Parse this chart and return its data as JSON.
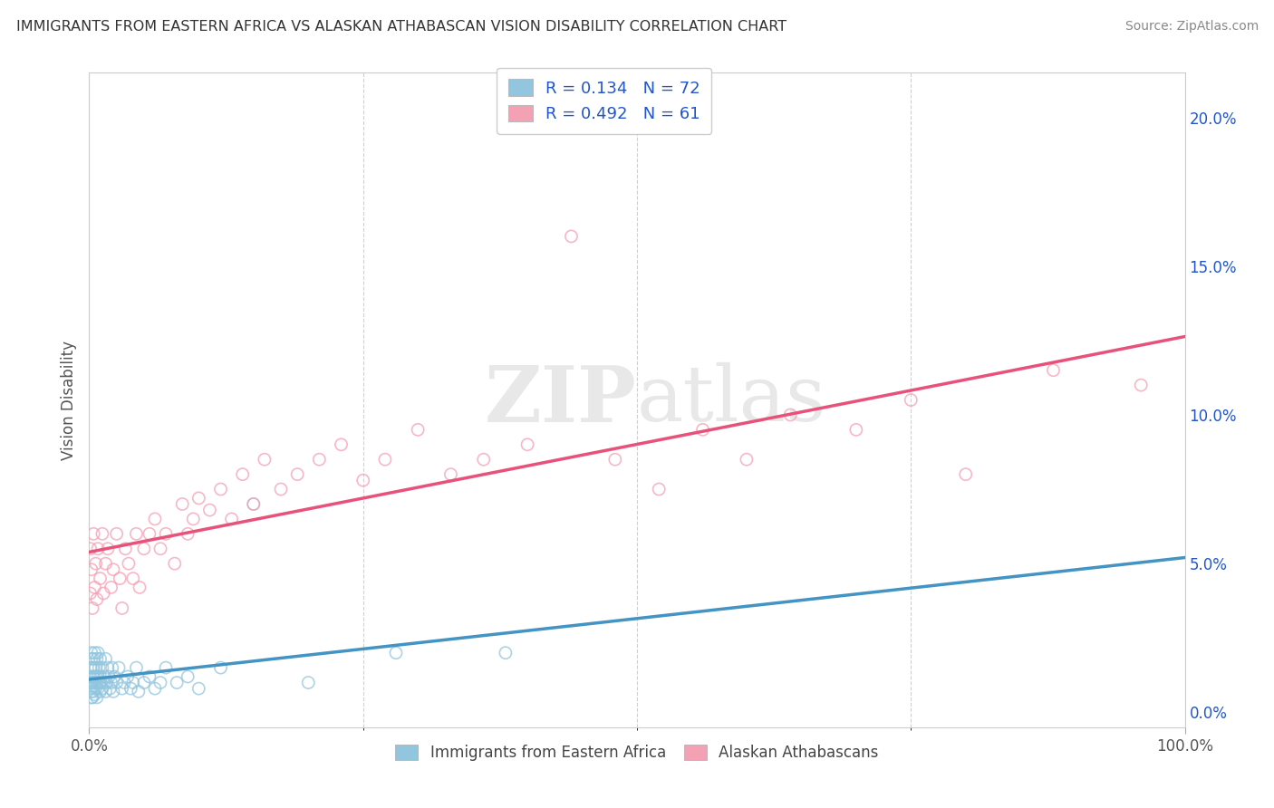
{
  "title": "IMMIGRANTS FROM EASTERN AFRICA VS ALASKAN ATHABASCAN VISION DISABILITY CORRELATION CHART",
  "source": "Source: ZipAtlas.com",
  "ylabel": "Vision Disability",
  "watermark": "ZIPatlas",
  "series1_label": "Immigrants from Eastern Africa",
  "series1_color": "#92c5de",
  "series1_R": 0.134,
  "series1_N": 72,
  "series1_x": [
    0.001,
    0.001,
    0.001,
    0.001,
    0.002,
    0.002,
    0.002,
    0.002,
    0.002,
    0.003,
    0.003,
    0.003,
    0.003,
    0.003,
    0.004,
    0.004,
    0.004,
    0.004,
    0.005,
    0.005,
    0.005,
    0.006,
    0.006,
    0.006,
    0.007,
    0.007,
    0.007,
    0.008,
    0.008,
    0.008,
    0.009,
    0.009,
    0.01,
    0.01,
    0.01,
    0.011,
    0.012,
    0.012,
    0.013,
    0.014,
    0.015,
    0.015,
    0.016,
    0.017,
    0.018,
    0.019,
    0.02,
    0.021,
    0.022,
    0.023,
    0.025,
    0.027,
    0.03,
    0.032,
    0.035,
    0.038,
    0.04,
    0.043,
    0.045,
    0.05,
    0.055,
    0.06,
    0.065,
    0.07,
    0.08,
    0.09,
    0.1,
    0.12,
    0.15,
    0.2,
    0.28,
    0.38
  ],
  "series1_y": [
    0.01,
    0.012,
    0.008,
    0.015,
    0.018,
    0.01,
    0.005,
    0.007,
    0.02,
    0.012,
    0.008,
    0.015,
    0.005,
    0.01,
    0.018,
    0.012,
    0.007,
    0.015,
    0.01,
    0.02,
    0.006,
    0.012,
    0.008,
    0.015,
    0.01,
    0.018,
    0.005,
    0.012,
    0.008,
    0.02,
    0.01,
    0.015,
    0.007,
    0.012,
    0.018,
    0.01,
    0.008,
    0.015,
    0.01,
    0.012,
    0.018,
    0.007,
    0.01,
    0.015,
    0.012,
    0.008,
    0.01,
    0.015,
    0.007,
    0.012,
    0.01,
    0.015,
    0.008,
    0.01,
    0.012,
    0.008,
    0.01,
    0.015,
    0.007,
    0.01,
    0.012,
    0.008,
    0.01,
    0.015,
    0.01,
    0.012,
    0.008,
    0.015,
    0.07,
    0.01,
    0.02,
    0.02
  ],
  "series2_label": "Alaskan Athabascans",
  "series2_color": "#f4a0b5",
  "series2_R": 0.492,
  "series2_N": 61,
  "series2_x": [
    0.001,
    0.001,
    0.002,
    0.003,
    0.004,
    0.005,
    0.006,
    0.007,
    0.008,
    0.01,
    0.012,
    0.013,
    0.015,
    0.017,
    0.02,
    0.022,
    0.025,
    0.028,
    0.03,
    0.033,
    0.036,
    0.04,
    0.043,
    0.046,
    0.05,
    0.055,
    0.06,
    0.065,
    0.07,
    0.078,
    0.085,
    0.09,
    0.095,
    0.1,
    0.11,
    0.12,
    0.13,
    0.14,
    0.15,
    0.16,
    0.175,
    0.19,
    0.21,
    0.23,
    0.25,
    0.27,
    0.3,
    0.33,
    0.36,
    0.4,
    0.44,
    0.48,
    0.52,
    0.56,
    0.6,
    0.64,
    0.7,
    0.75,
    0.8,
    0.88,
    0.96
  ],
  "series2_y": [
    0.04,
    0.055,
    0.048,
    0.035,
    0.06,
    0.042,
    0.05,
    0.038,
    0.055,
    0.045,
    0.06,
    0.04,
    0.05,
    0.055,
    0.042,
    0.048,
    0.06,
    0.045,
    0.035,
    0.055,
    0.05,
    0.045,
    0.06,
    0.042,
    0.055,
    0.06,
    0.065,
    0.055,
    0.06,
    0.05,
    0.07,
    0.06,
    0.065,
    0.072,
    0.068,
    0.075,
    0.065,
    0.08,
    0.07,
    0.085,
    0.075,
    0.08,
    0.085,
    0.09,
    0.078,
    0.085,
    0.095,
    0.08,
    0.085,
    0.09,
    0.16,
    0.085,
    0.075,
    0.095,
    0.085,
    0.1,
    0.095,
    0.105,
    0.08,
    0.115,
    0.11
  ],
  "series1_line_color": "#4393c3",
  "series1_line_style": "solid",
  "series2_line_color": "#e8527a",
  "series2_line_style": "solid",
  "xlim": [
    0.0,
    1.0
  ],
  "ylim": [
    -0.005,
    0.215
  ],
  "xtick_positions": [
    0.0,
    1.0
  ],
  "xtick_labels": [
    "0.0%",
    "100.0%"
  ],
  "yticks_right": [
    0.0,
    0.05,
    0.1,
    0.15,
    0.2
  ],
  "ytick_right_labels": [
    "0.0%",
    "5.0%",
    "10.0%",
    "15.0%",
    "20.0%"
  ],
  "grid_color": "#d0d0d0",
  "background_color": "#ffffff",
  "title_color": "#333333",
  "axis_label_color": "#555555",
  "legend_text_color": "#2255cc",
  "source_color": "#888888"
}
